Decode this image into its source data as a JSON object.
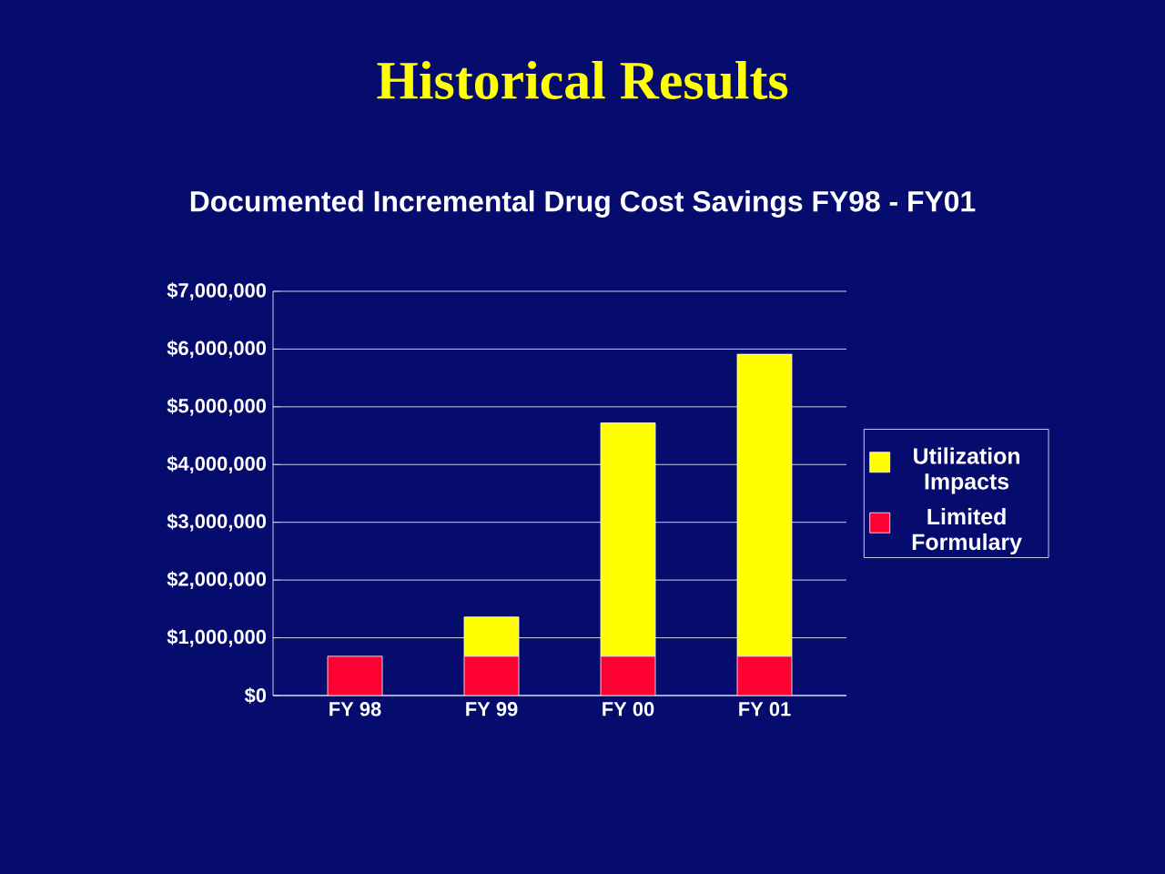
{
  "chart_data": {
    "type": "bar",
    "title": "Historical Results",
    "subtitle": "Documented Incremental Drug Cost Savings FY98 - FY01",
    "categories": [
      "FY 98",
      "FY 99",
      "FY 00",
      "FY 01"
    ],
    "stacked": true,
    "series": [
      {
        "name": "Limited Formulary",
        "color": "#ff0033",
        "values": [
          680000,
          680000,
          680000,
          680000
        ]
      },
      {
        "name": "Utilization Impacts",
        "color": "#ffff00",
        "values": [
          0,
          680000,
          4040000,
          5230000
        ]
      }
    ],
    "ylim": [
      0,
      7000000
    ],
    "yticks": [
      {
        "value": 0,
        "label": "$0"
      },
      {
        "value": 1000000,
        "label": "$1,000,000"
      },
      {
        "value": 2000000,
        "label": "$2,000,000"
      },
      {
        "value": 3000000,
        "label": "$3,000,000"
      },
      {
        "value": 4000000,
        "label": "$4,000,000"
      },
      {
        "value": 5000000,
        "label": "$5,000,000"
      },
      {
        "value": 6000000,
        "label": "$6,000,000"
      },
      {
        "value": 7000000,
        "label": "$7,000,000"
      }
    ],
    "grid": "y",
    "legend": "right"
  }
}
